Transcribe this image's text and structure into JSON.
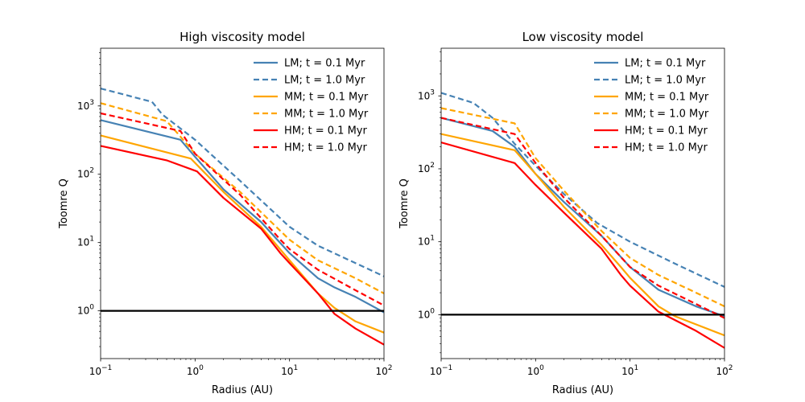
{
  "chart_data": [
    {
      "type": "line",
      "title": "High viscosity model",
      "xlabel": "Radius (AU)",
      "ylabel": "Toomre Q",
      "xscale": "log",
      "yscale": "log",
      "xlim": [
        0.1,
        100
      ],
      "ylim": [
        0.2,
        7000
      ],
      "xticks": [
        {
          "value": 0.1,
          "base": "10",
          "exp": "−1"
        },
        {
          "value": 1,
          "base": "10",
          "exp": "0"
        },
        {
          "value": 10,
          "base": "10",
          "exp": "1"
        },
        {
          "value": 100,
          "base": "10",
          "exp": "2"
        }
      ],
      "yticks": [
        {
          "value": 1,
          "base": "10",
          "exp": "0"
        },
        {
          "value": 10,
          "base": "10",
          "exp": "1"
        },
        {
          "value": 100,
          "base": "10",
          "exp": "2"
        },
        {
          "value": 1000,
          "base": "10",
          "exp": "3"
        }
      ],
      "reference_line": {
        "y": 1,
        "color": "#000000"
      },
      "legend_position": "top-right",
      "series": [
        {
          "name": "LM; t = 0.1 Myr",
          "color": "#4682b4",
          "dash": "solid",
          "x": [
            0.1,
            0.7,
            1.0,
            2,
            5,
            10,
            20,
            30,
            50,
            100
          ],
          "y": [
            620,
            320,
            180,
            60,
            20,
            7,
            3,
            2.2,
            1.6,
            0.95
          ]
        },
        {
          "name": "LM; t = 1.0 Myr",
          "color": "#4682b4",
          "dash": "dashed",
          "x": [
            0.1,
            0.35,
            0.45,
            1.0,
            3,
            10,
            20,
            50,
            100
          ],
          "y": [
            1800,
            1150,
            750,
            320,
            80,
            17,
            9,
            5,
            3.2
          ]
        },
        {
          "name": "MM; t = 0.1 Myr",
          "color": "#ffa500",
          "dash": "solid",
          "x": [
            0.1,
            0.9,
            2,
            5,
            10,
            20,
            30,
            50,
            100
          ],
          "y": [
            370,
            170,
            55,
            17,
            5.5,
            1.8,
            1.1,
            0.7,
            0.48
          ]
        },
        {
          "name": "MM; t = 1.0 Myr",
          "color": "#ffa500",
          "dash": "dashed",
          "x": [
            0.1,
            0.5,
            0.65,
            1.0,
            3,
            10,
            20,
            50,
            100
          ],
          "y": [
            1100,
            600,
            400,
            200,
            55,
            11,
            5.5,
            3,
            1.8
          ]
        },
        {
          "name": "HM; t = 0.1 Myr",
          "color": "#ff0000",
          "dash": "solid",
          "x": [
            0.1,
            0.5,
            1.05,
            2,
            5,
            8,
            10,
            20,
            30,
            50,
            100
          ],
          "y": [
            260,
            160,
            110,
            45,
            16,
            7,
            5,
            1.8,
            0.9,
            0.55,
            0.32
          ]
        },
        {
          "name": "HM; t = 1.0 Myr",
          "color": "#ff0000",
          "dash": "dashed",
          "x": [
            0.1,
            0.7,
            1.0,
            3,
            8,
            10,
            20,
            50,
            100
          ],
          "y": [
            780,
            430,
            200,
            50,
            11,
            8,
            4,
            2,
            1.2
          ]
        }
      ]
    },
    {
      "type": "line",
      "title": "Low viscosity model",
      "xlabel": "Radius (AU)",
      "ylabel": "Toomre Q",
      "xscale": "log",
      "yscale": "log",
      "xlim": [
        0.1,
        100
      ],
      "ylim": [
        0.25,
        4500
      ],
      "xticks": [
        {
          "value": 0.1,
          "base": "10",
          "exp": "−1"
        },
        {
          "value": 1,
          "base": "10",
          "exp": "0"
        },
        {
          "value": 10,
          "base": "10",
          "exp": "1"
        },
        {
          "value": 100,
          "base": "10",
          "exp": "2"
        }
      ],
      "yticks": [
        {
          "value": 1,
          "base": "10",
          "exp": "0"
        },
        {
          "value": 10,
          "base": "10",
          "exp": "1"
        },
        {
          "value": 100,
          "base": "10",
          "exp": "2"
        },
        {
          "value": 1000,
          "base": "10",
          "exp": "3"
        }
      ],
      "reference_line": {
        "y": 1,
        "color": "#000000"
      },
      "legend_position": "top-right",
      "series": [
        {
          "name": "LM; t = 0.1 Myr",
          "color": "#4682b4",
          "dash": "solid",
          "x": [
            0.1,
            0.35,
            0.6,
            1.0,
            2,
            5,
            10,
            20,
            50,
            100
          ],
          "y": [
            500,
            330,
            200,
            85,
            35,
            12,
            4.5,
            2.2,
            1.3,
            0.95
          ]
        },
        {
          "name": "LM; t = 1.0 Myr",
          "color": "#4682b4",
          "dash": "dashed",
          "x": [
            0.1,
            0.22,
            0.35,
            0.6,
            1.0,
            2,
            4.5,
            10,
            30,
            100
          ],
          "y": [
            1100,
            800,
            500,
            220,
            110,
            45,
            18,
            10,
            5,
            2.4
          ]
        },
        {
          "name": "MM; t = 0.1 Myr",
          "color": "#ffa500",
          "dash": "solid",
          "x": [
            0.1,
            0.6,
            1.0,
            2,
            5,
            8,
            10,
            20,
            30,
            100
          ],
          "y": [
            300,
            180,
            85,
            30,
            9,
            4.5,
            3.2,
            1.3,
            0.95,
            0.52
          ]
        },
        {
          "name": "MM; t = 1.0 Myr",
          "color": "#ffa500",
          "dash": "dashed",
          "x": [
            0.1,
            0.6,
            1.0,
            2,
            5,
            10,
            20,
            50,
            100
          ],
          "y": [
            680,
            420,
            140,
            50,
            14,
            6,
            3.5,
            2,
            1.3
          ]
        },
        {
          "name": "HM; t = 0.1 Myr",
          "color": "#ff0000",
          "dash": "solid",
          "x": [
            0.1,
            0.6,
            1.0,
            2,
            5,
            8,
            10,
            20,
            50,
            100
          ],
          "y": [
            230,
            120,
            60,
            25,
            8,
            3.5,
            2.5,
            1.1,
            0.6,
            0.35
          ]
        },
        {
          "name": "HM; t = 1.0 Myr",
          "color": "#ff0000",
          "dash": "dashed",
          "x": [
            0.1,
            0.6,
            1.0,
            2,
            5,
            10,
            20,
            50,
            100
          ],
          "y": [
            500,
            300,
            120,
            40,
            12,
            4.5,
            2.5,
            1.4,
            0.9
          ]
        }
      ]
    }
  ]
}
